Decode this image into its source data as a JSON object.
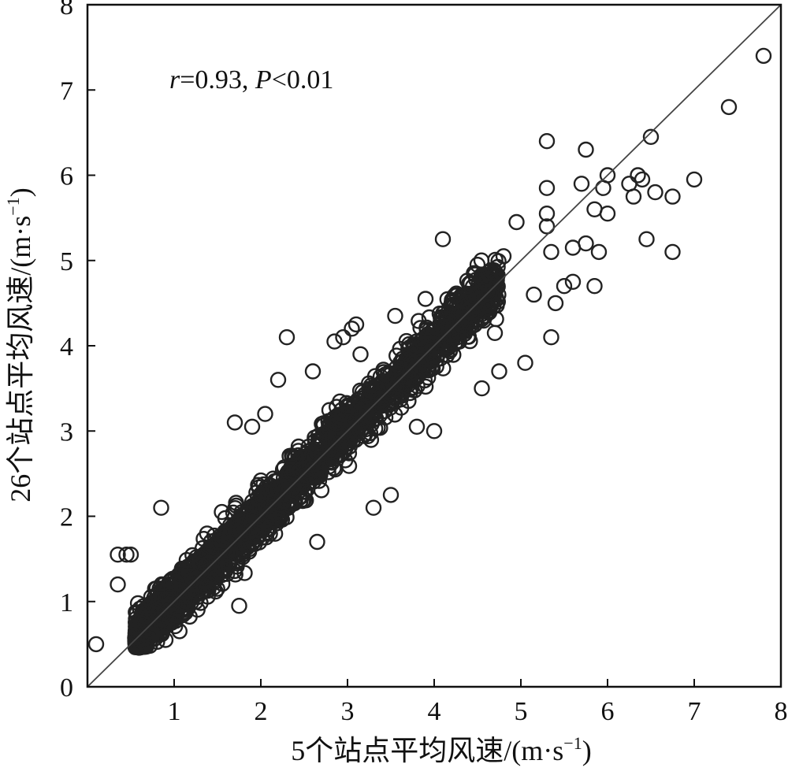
{
  "chart_data": {
    "type": "scatter",
    "title": "",
    "xlabel": "5个站点平均风速/(m·s",
    "ylabel": "26个站点平均风速/(m·s",
    "unit_exponent": "−1",
    "unit_close": ")",
    "xlim": [
      0,
      8
    ],
    "ylim": [
      0,
      8
    ],
    "x_ticks": [
      "1",
      "2",
      "3",
      "4",
      "5",
      "6",
      "7",
      "8"
    ],
    "y_ticks": [
      "0",
      "1",
      "2",
      "3",
      "4",
      "5",
      "6",
      "7",
      "8"
    ],
    "grid": false,
    "annotation": {
      "r_symbol": "r",
      "r_value": "=0.93, ",
      "p_symbol": "P",
      "p_value": "<0.01"
    },
    "reference_line": {
      "type": "y=x",
      "x": [
        0,
        8
      ],
      "y": [
        0,
        8
      ]
    },
    "marker": "open-circle",
    "series": [
      {
        "points": [
          [
            0.1,
            0.5
          ],
          [
            0.35,
            1.55
          ],
          [
            0.35,
            1.2
          ],
          [
            0.45,
            1.55
          ],
          [
            0.5,
            1.55
          ],
          [
            0.85,
            2.1
          ],
          [
            0.9,
            0.55
          ],
          [
            1.4,
            1.45
          ],
          [
            1.55,
            2.05
          ],
          [
            1.7,
            3.1
          ],
          [
            1.75,
            0.95
          ],
          [
            1.9,
            3.05
          ],
          [
            2.05,
            3.2
          ],
          [
            2.2,
            3.6
          ],
          [
            2.3,
            4.1
          ],
          [
            2.6,
            3.7
          ],
          [
            2.65,
            1.7
          ],
          [
            2.85,
            4.05
          ],
          [
            2.95,
            4.1
          ],
          [
            3.05,
            4.2
          ],
          [
            3.1,
            4.25
          ],
          [
            3.15,
            3.9
          ],
          [
            3.3,
            2.1
          ],
          [
            3.5,
            2.25
          ],
          [
            3.55,
            4.35
          ],
          [
            3.8,
            3.05
          ],
          [
            3.9,
            4.55
          ],
          [
            4.0,
            3.0
          ],
          [
            4.1,
            5.25
          ],
          [
            4.3,
            4.55
          ],
          [
            4.5,
            4.95
          ],
          [
            4.55,
            3.5
          ],
          [
            4.7,
            4.15
          ],
          [
            4.75,
            3.7
          ],
          [
            4.8,
            5.05
          ],
          [
            4.95,
            5.45
          ],
          [
            5.05,
            3.8
          ],
          [
            5.15,
            4.6
          ],
          [
            5.3,
            5.4
          ],
          [
            5.35,
            5.1
          ],
          [
            5.35,
            4.1
          ],
          [
            5.4,
            4.5
          ],
          [
            5.5,
            4.7
          ],
          [
            5.6,
            4.75
          ],
          [
            5.3,
            6.4
          ],
          [
            5.3,
            5.85
          ],
          [
            5.3,
            5.55
          ],
          [
            5.6,
            5.15
          ],
          [
            5.7,
            5.9
          ],
          [
            5.75,
            6.3
          ],
          [
            5.75,
            5.2
          ],
          [
            5.85,
            5.6
          ],
          [
            5.85,
            4.7
          ],
          [
            5.9,
            5.1
          ],
          [
            5.95,
            5.85
          ],
          [
            6.0,
            5.55
          ],
          [
            6.0,
            6.0
          ],
          [
            6.25,
            5.9
          ],
          [
            6.3,
            5.75
          ],
          [
            6.35,
            6.0
          ],
          [
            6.4,
            5.95
          ],
          [
            6.45,
            5.25
          ],
          [
            6.5,
            6.45
          ],
          [
            6.55,
            5.8
          ],
          [
            6.75,
            5.75
          ],
          [
            6.75,
            5.1
          ],
          [
            7.0,
            5.95
          ],
          [
            7.4,
            6.8
          ],
          [
            7.8,
            7.4
          ]
        ]
      }
    ]
  }
}
